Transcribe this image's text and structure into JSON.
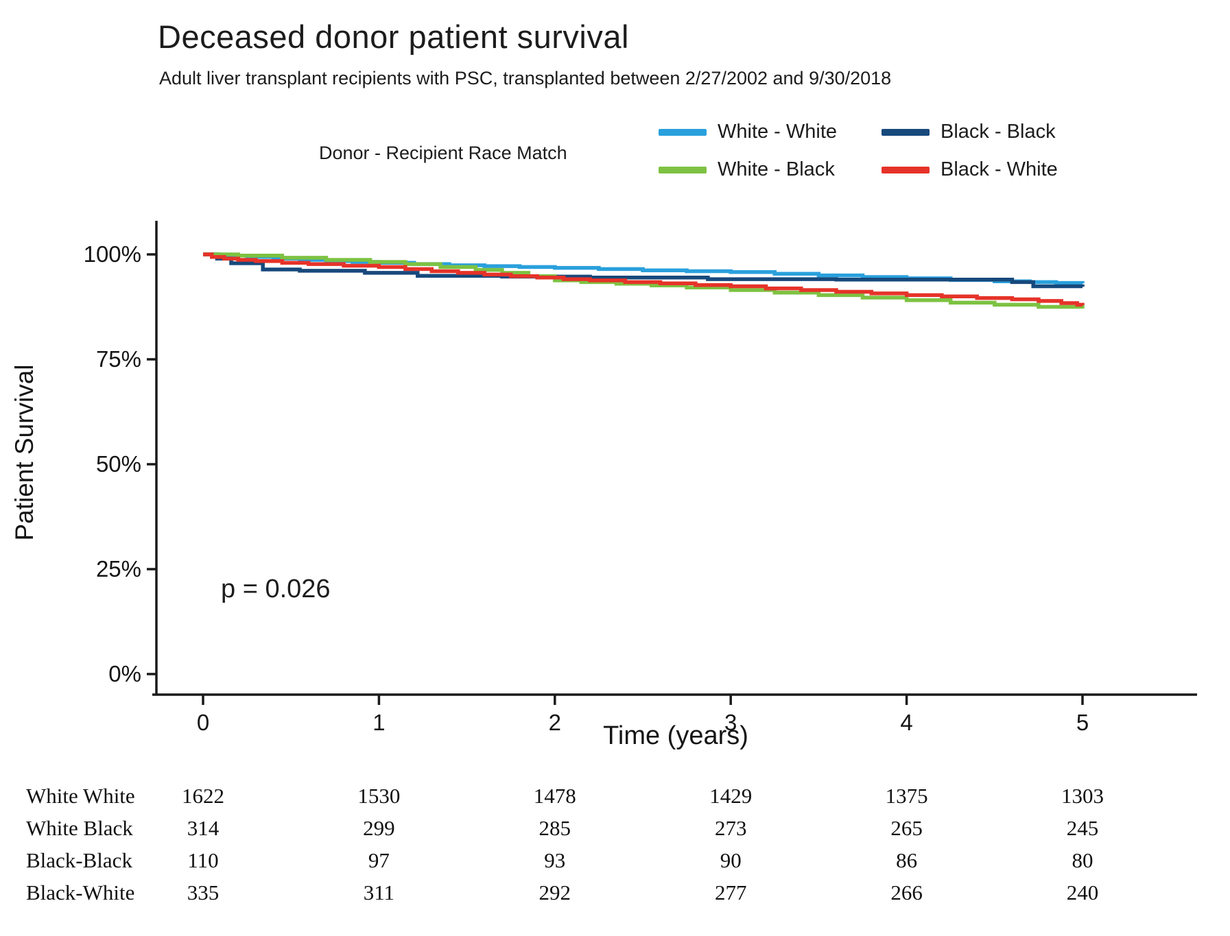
{
  "header": {
    "title": "Deceased donor patient survival",
    "subtitle": "Adult liver transplant recipients with PSC, transplanted between 2/27/2002 and 9/30/2018"
  },
  "legend": {
    "title": "Donor - Recipient Race Match",
    "items": [
      {
        "key": "white-white",
        "label": "White - White",
        "color": "#2AA0DC"
      },
      {
        "key": "black-black",
        "label": "Black - Black",
        "color": "#17497C"
      },
      {
        "key": "white-black",
        "label": "White - Black",
        "color": "#7DC242"
      },
      {
        "key": "black-white",
        "label": "Black - White",
        "color": "#E63329"
      }
    ]
  },
  "chart_data": {
    "type": "line",
    "subtype": "kaplan-meier-step",
    "title": "Deceased donor patient survival",
    "xlabel": "Time (years)",
    "ylabel": "Patient Survival",
    "xlim": [
      0,
      5.1
    ],
    "ylim": [
      0,
      100
    ],
    "x_ticks": [
      0,
      1,
      2,
      3,
      4,
      5
    ],
    "y_tick_values": [
      0,
      25,
      50,
      75,
      100
    ],
    "y_tick_labels": [
      "0%",
      "25%",
      "50%",
      "75%",
      "100%"
    ],
    "annotation": "p = 0.026",
    "grid": false,
    "legend_position": "top",
    "series": [
      {
        "name": "White - White",
        "key": "white-white",
        "color": "#2AA0DC",
        "points": [
          [
            0,
            100
          ],
          [
            0.1,
            99.7
          ],
          [
            0.25,
            99.4
          ],
          [
            0.4,
            99.0
          ],
          [
            0.55,
            98.7
          ],
          [
            0.7,
            98.4
          ],
          [
            0.85,
            98.2
          ],
          [
            1.0,
            98.0
          ],
          [
            1.2,
            97.7
          ],
          [
            1.4,
            97.4
          ],
          [
            1.6,
            97.2
          ],
          [
            1.8,
            97.0
          ],
          [
            2.0,
            96.8
          ],
          [
            2.25,
            96.5
          ],
          [
            2.5,
            96.2
          ],
          [
            2.75,
            96.0
          ],
          [
            3.0,
            95.8
          ],
          [
            3.25,
            95.4
          ],
          [
            3.5,
            95.0
          ],
          [
            3.75,
            94.6
          ],
          [
            4.0,
            94.3
          ],
          [
            4.25,
            93.9
          ],
          [
            4.5,
            93.6
          ],
          [
            4.7,
            93.4
          ],
          [
            4.85,
            93.2
          ],
          [
            5.0,
            93.1
          ]
        ]
      },
      {
        "name": "Black - Black",
        "key": "black-black",
        "color": "#17497C",
        "points": [
          [
            0,
            100
          ],
          [
            0.08,
            99.0
          ],
          [
            0.16,
            97.9
          ],
          [
            0.34,
            96.4
          ],
          [
            0.55,
            96.1
          ],
          [
            0.92,
            95.6
          ],
          [
            1.22,
            94.9
          ],
          [
            1.7,
            94.7
          ],
          [
            2.2,
            94.5
          ],
          [
            2.87,
            94.1
          ],
          [
            3.6,
            94.0
          ],
          [
            4.6,
            93.4
          ],
          [
            4.72,
            92.4
          ],
          [
            5.0,
            92.3
          ]
        ]
      },
      {
        "name": "White - Black",
        "key": "white-black",
        "color": "#7DC242",
        "points": [
          [
            0,
            100
          ],
          [
            0.2,
            99.7
          ],
          [
            0.45,
            99.2
          ],
          [
            0.7,
            98.7
          ],
          [
            0.95,
            98.2
          ],
          [
            1.15,
            97.7
          ],
          [
            1.35,
            97.0
          ],
          [
            1.55,
            96.3
          ],
          [
            1.7,
            95.6
          ],
          [
            1.85,
            94.8
          ],
          [
            2.0,
            93.8
          ],
          [
            2.15,
            93.4
          ],
          [
            2.35,
            93.0
          ],
          [
            2.55,
            92.6
          ],
          [
            2.75,
            92.1
          ],
          [
            3.0,
            91.5
          ],
          [
            3.25,
            90.9
          ],
          [
            3.5,
            90.3
          ],
          [
            3.75,
            89.7
          ],
          [
            4.0,
            89.1
          ],
          [
            4.25,
            88.5
          ],
          [
            4.5,
            88.0
          ],
          [
            4.75,
            87.5
          ],
          [
            5.0,
            87.1
          ]
        ]
      },
      {
        "name": "Black - White",
        "key": "black-white",
        "color": "#E63329",
        "points": [
          [
            0,
            100
          ],
          [
            0.05,
            99.4
          ],
          [
            0.12,
            99.0
          ],
          [
            0.2,
            98.7
          ],
          [
            0.3,
            98.4
          ],
          [
            0.45,
            98.0
          ],
          [
            0.6,
            97.7
          ],
          [
            0.8,
            97.3
          ],
          [
            1.0,
            97.0
          ],
          [
            1.15,
            96.5
          ],
          [
            1.3,
            96.0
          ],
          [
            1.45,
            95.6
          ],
          [
            1.6,
            95.2
          ],
          [
            1.75,
            94.8
          ],
          [
            1.9,
            94.5
          ],
          [
            2.05,
            94.1
          ],
          [
            2.2,
            93.8
          ],
          [
            2.4,
            93.4
          ],
          [
            2.6,
            93.1
          ],
          [
            2.8,
            92.7
          ],
          [
            3.0,
            92.4
          ],
          [
            3.2,
            91.9
          ],
          [
            3.4,
            91.5
          ],
          [
            3.6,
            91.1
          ],
          [
            3.8,
            90.7
          ],
          [
            4.0,
            90.3
          ],
          [
            4.2,
            90.0
          ],
          [
            4.4,
            89.6
          ],
          [
            4.6,
            89.3
          ],
          [
            4.75,
            88.9
          ],
          [
            4.88,
            88.4
          ],
          [
            4.97,
            88.0
          ],
          [
            5.0,
            87.9
          ]
        ]
      }
    ]
  },
  "risk_table": {
    "time_points": [
      0,
      1,
      2,
      3,
      4,
      5
    ],
    "rows": [
      {
        "label": "White White",
        "counts": [
          1622,
          1530,
          1478,
          1429,
          1375,
          1303
        ]
      },
      {
        "label": "White Black",
        "counts": [
          314,
          299,
          285,
          273,
          265,
          245
        ]
      },
      {
        "label": "Black-Black",
        "counts": [
          110,
          97,
          93,
          90,
          86,
          80
        ]
      },
      {
        "label": "Black-White",
        "counts": [
          335,
          311,
          292,
          277,
          266,
          240
        ]
      }
    ]
  }
}
